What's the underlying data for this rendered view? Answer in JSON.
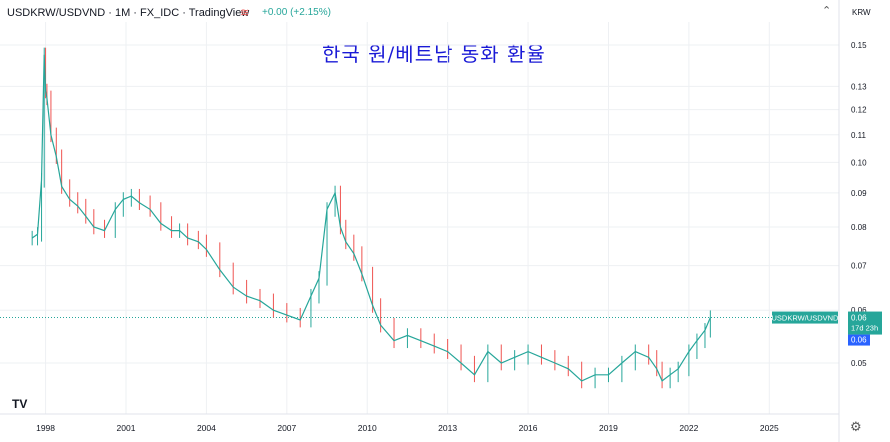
{
  "header": {
    "symbol_text": "USDKRW/USDVND · 1M · FX_IDC · TradingView",
    "change_text": "+0.00 (+2.15%)",
    "collapse_glyph": "⌃",
    "currency": "KRW"
  },
  "overlay_title": "한국 원/베트남 동화 환율",
  "price_badge": {
    "symbol_label": "USDKRW/USDVND",
    "price": "0.06",
    "countdown": "17d 23h",
    "price2": "0.06"
  },
  "icons": {
    "logo": "tradingview-logo-icon",
    "settings": "gear-icon",
    "change": "wave-icon"
  },
  "colors": {
    "up": "#26a69a",
    "down": "#ef5350",
    "badge": "#26a69a",
    "grid": "#eef0f3",
    "title": "#1a1ad6"
  },
  "chart_data": {
    "type": "line",
    "title": "USDKRW/USDVND · 1M · FX_IDC",
    "y_scale": "log",
    "ylim": [
      0.04,
      0.16
    ],
    "y_ticks": [
      0.15,
      0.13,
      0.12,
      0.11,
      0.1,
      0.09,
      0.08,
      0.07,
      0.06,
      0.05
    ],
    "y_tick_labels": [
      "0.15",
      "0.13",
      "0.12",
      "0.11",
      "0.10",
      "0.09",
      "0.08",
      "0.07",
      "0.06",
      "0.05"
    ],
    "x_ticks": [
      1998,
      2001,
      2004,
      2007,
      2010,
      2013,
      2016,
      2019,
      2022,
      2025
    ],
    "x_tick_labels": [
      "1998",
      "2001",
      "2004",
      "2007",
      "2010",
      "2013",
      "2016",
      "2019",
      "2022",
      "2025"
    ],
    "xlim": [
      1996.3,
      2027.6
    ],
    "grid": true,
    "last_value": 0.0585,
    "series": [
      {
        "name": "USDKRW/USDVND",
        "x": [
          1997.5,
          1997.7,
          1997.85,
          1997.95,
          1998.0,
          1998.05,
          1998.2,
          1998.4,
          1998.6,
          1998.9,
          1999.2,
          1999.5,
          1999.8,
          2000.2,
          2000.6,
          2000.9,
          2001.2,
          2001.5,
          2001.9,
          2002.3,
          2002.7,
          2003.0,
          2003.3,
          2003.7,
          2004.0,
          2004.5,
          2005.0,
          2005.5,
          2006.0,
          2006.5,
          2007.0,
          2007.5,
          2007.9,
          2008.2,
          2008.5,
          2008.8,
          2009.0,
          2009.2,
          2009.5,
          2009.8,
          2010.2,
          2010.5,
          2011.0,
          2011.5,
          2012.0,
          2012.5,
          2013.0,
          2013.5,
          2014.0,
          2014.5,
          2015.0,
          2015.5,
          2016.0,
          2016.5,
          2017.0,
          2017.5,
          2018.0,
          2018.5,
          2019.0,
          2019.5,
          2020.0,
          2020.5,
          2020.8,
          2021.0,
          2021.3,
          2021.6,
          2022.0,
          2022.3,
          2022.6,
          2022.8
        ],
        "y": [
          0.077,
          0.078,
          0.094,
          0.145,
          0.128,
          0.125,
          0.11,
          0.102,
          0.092,
          0.088,
          0.086,
          0.083,
          0.08,
          0.079,
          0.085,
          0.088,
          0.089,
          0.087,
          0.085,
          0.081,
          0.079,
          0.079,
          0.077,
          0.076,
          0.074,
          0.069,
          0.065,
          0.063,
          0.062,
          0.06,
          0.059,
          0.058,
          0.063,
          0.067,
          0.085,
          0.09,
          0.08,
          0.076,
          0.073,
          0.068,
          0.061,
          0.057,
          0.054,
          0.055,
          0.054,
          0.053,
          0.052,
          0.05,
          0.048,
          0.052,
          0.05,
          0.051,
          0.052,
          0.051,
          0.05,
          0.049,
          0.047,
          0.048,
          0.048,
          0.05,
          0.052,
          0.051,
          0.049,
          0.047,
          0.048,
          0.049,
          0.052,
          0.054,
          0.056,
          0.0585
        ]
      }
    ]
  }
}
